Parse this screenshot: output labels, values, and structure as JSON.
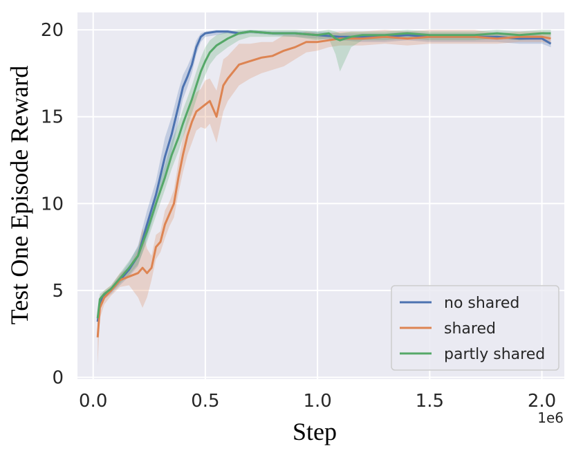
{
  "chart_data": {
    "type": "line",
    "title": "",
    "xlabel": "Step",
    "ylabel": "Test One Episode Reward",
    "x_offset_label": "1e6",
    "xlim": [
      -0.07,
      2.1
    ],
    "ylim": [
      -0.1,
      21.0
    ],
    "xticks": [
      0.0,
      0.5,
      1.0,
      1.5,
      2.0
    ],
    "xtick_labels": [
      "0.0",
      "0.5",
      "1.0",
      "1.5",
      "2.0"
    ],
    "yticks": [
      0,
      5,
      10,
      15,
      20
    ],
    "ytick_labels": [
      "0",
      "5",
      "10",
      "15",
      "20"
    ],
    "grid": true,
    "legend_position": "lower-right",
    "background": "#eaeaf2",
    "series": [
      {
        "name": "no shared",
        "color": "#4c72b0",
        "x": [
          0.02,
          0.03,
          0.05,
          0.08,
          0.12,
          0.16,
          0.2,
          0.24,
          0.28,
          0.32,
          0.35,
          0.38,
          0.4,
          0.42,
          0.44,
          0.46,
          0.48,
          0.5,
          0.55,
          0.6,
          0.65,
          0.7,
          0.8,
          0.9,
          1.0,
          1.1,
          1.2,
          1.3,
          1.4,
          1.5,
          1.6,
          1.7,
          1.8,
          1.9,
          2.0,
          2.04
        ],
        "values": [
          3.2,
          4.3,
          4.7,
          5.0,
          5.6,
          6.2,
          7.0,
          8.8,
          10.5,
          12.7,
          14.0,
          15.6,
          16.7,
          17.3,
          18.0,
          19.0,
          19.6,
          19.8,
          19.9,
          19.9,
          19.8,
          19.9,
          19.8,
          19.8,
          19.7,
          19.6,
          19.6,
          19.6,
          19.7,
          19.6,
          19.6,
          19.6,
          19.6,
          19.5,
          19.5,
          19.2
        ],
        "lower": [
          2.8,
          4.0,
          4.5,
          4.8,
          5.3,
          5.8,
          6.4,
          8.0,
          9.7,
          11.6,
          13.0,
          14.7,
          16.0,
          16.7,
          17.5,
          18.6,
          19.3,
          19.6,
          19.7,
          19.8,
          19.7,
          19.8,
          19.7,
          19.6,
          19.5,
          19.4,
          19.3,
          19.3,
          19.4,
          19.3,
          19.3,
          19.3,
          19.3,
          19.2,
          19.2,
          19.0
        ],
        "upper": [
          3.6,
          4.6,
          4.9,
          5.2,
          5.9,
          6.6,
          7.6,
          9.6,
          11.3,
          13.8,
          15.0,
          16.5,
          17.4,
          17.9,
          18.5,
          19.4,
          19.8,
          19.9,
          20.0,
          20.0,
          19.9,
          20.0,
          19.9,
          19.9,
          19.9,
          19.8,
          19.8,
          19.8,
          19.9,
          19.8,
          19.8,
          19.8,
          19.8,
          19.7,
          19.7,
          19.4
        ]
      },
      {
        "name": "shared",
        "color": "#dd8452",
        "x": [
          0.02,
          0.03,
          0.05,
          0.08,
          0.12,
          0.16,
          0.2,
          0.22,
          0.24,
          0.26,
          0.28,
          0.3,
          0.32,
          0.34,
          0.36,
          0.38,
          0.4,
          0.42,
          0.44,
          0.46,
          0.48,
          0.5,
          0.52,
          0.55,
          0.58,
          0.6,
          0.65,
          0.7,
          0.75,
          0.8,
          0.85,
          0.9,
          0.95,
          1.0,
          1.05,
          1.1,
          1.2,
          1.3,
          1.4,
          1.5,
          1.6,
          1.7,
          1.8,
          1.9,
          2.0,
          2.04
        ],
        "values": [
          2.3,
          4.0,
          4.6,
          5.0,
          5.6,
          5.8,
          6.0,
          6.3,
          6.0,
          6.3,
          7.5,
          7.8,
          8.8,
          9.4,
          10.0,
          11.5,
          12.8,
          13.9,
          14.7,
          15.3,
          15.5,
          15.7,
          15.9,
          15.0,
          16.8,
          17.2,
          18.0,
          18.2,
          18.4,
          18.5,
          18.8,
          19.0,
          19.3,
          19.3,
          19.4,
          19.5,
          19.5,
          19.6,
          19.5,
          19.6,
          19.6,
          19.6,
          19.5,
          19.6,
          19.6,
          19.5
        ],
        "lower": [
          0.7,
          3.4,
          4.2,
          4.7,
          5.2,
          5.3,
          4.6,
          4.0,
          4.6,
          5.6,
          6.8,
          7.2,
          8.0,
          8.7,
          9.2,
          10.6,
          11.8,
          12.8,
          13.5,
          14.2,
          14.4,
          14.3,
          14.6,
          13.5,
          15.3,
          15.9,
          16.8,
          17.2,
          17.5,
          17.7,
          17.9,
          18.3,
          18.7,
          18.8,
          19.0,
          19.1,
          19.1,
          19.2,
          19.1,
          19.2,
          19.2,
          19.2,
          19.2,
          19.3,
          19.3,
          19.2
        ],
        "upper": [
          3.9,
          4.6,
          5.0,
          5.3,
          6.0,
          6.3,
          7.4,
          8.6,
          7.4,
          7.0,
          8.2,
          8.4,
          9.6,
          10.1,
          10.8,
          12.4,
          13.8,
          15.0,
          15.9,
          16.4,
          16.6,
          17.1,
          17.2,
          16.5,
          18.3,
          18.5,
          19.2,
          19.2,
          19.3,
          19.3,
          19.7,
          19.7,
          19.9,
          19.8,
          19.8,
          19.9,
          19.9,
          20.0,
          19.9,
          20.0,
          20.0,
          20.0,
          19.8,
          19.9,
          19.9,
          19.8
        ]
      },
      {
        "name": "partly shared",
        "color": "#55a868",
        "x": [
          0.02,
          0.03,
          0.05,
          0.08,
          0.12,
          0.16,
          0.2,
          0.24,
          0.28,
          0.32,
          0.35,
          0.38,
          0.4,
          0.42,
          0.44,
          0.46,
          0.48,
          0.5,
          0.52,
          0.55,
          0.6,
          0.65,
          0.7,
          0.8,
          0.9,
          1.0,
          1.05,
          1.08,
          1.1,
          1.15,
          1.2,
          1.3,
          1.4,
          1.5,
          1.6,
          1.7,
          1.8,
          1.9,
          2.0,
          2.04
        ],
        "values": [
          3.4,
          4.5,
          4.8,
          5.1,
          5.7,
          6.3,
          7.0,
          8.4,
          10.0,
          11.5,
          12.8,
          13.8,
          14.6,
          15.3,
          16.0,
          16.8,
          17.6,
          18.2,
          18.7,
          19.1,
          19.5,
          19.8,
          19.9,
          19.8,
          19.8,
          19.7,
          19.8,
          19.5,
          19.4,
          19.6,
          19.7,
          19.7,
          19.8,
          19.7,
          19.7,
          19.7,
          19.8,
          19.7,
          19.8,
          19.8
        ],
        "lower": [
          3.0,
          4.2,
          4.6,
          4.9,
          5.4,
          5.9,
          6.5,
          7.8,
          9.3,
          10.8,
          12.0,
          13.0,
          13.8,
          14.5,
          15.2,
          16.0,
          16.8,
          17.4,
          18.0,
          18.5,
          19.0,
          19.4,
          19.6,
          19.6,
          19.6,
          19.4,
          19.5,
          18.6,
          17.6,
          19.0,
          19.4,
          19.4,
          19.5,
          19.4,
          19.4,
          19.4,
          19.5,
          19.4,
          19.5,
          19.6
        ],
        "upper": [
          3.8,
          4.8,
          5.0,
          5.3,
          6.0,
          6.7,
          7.5,
          9.0,
          10.7,
          12.2,
          13.6,
          14.6,
          15.4,
          16.1,
          16.8,
          17.6,
          18.4,
          19.0,
          19.4,
          19.7,
          19.9,
          20.0,
          20.0,
          20.0,
          20.0,
          19.9,
          20.0,
          19.9,
          19.8,
          19.9,
          19.9,
          19.9,
          20.0,
          19.9,
          19.9,
          19.9,
          20.0,
          19.9,
          20.0,
          20.0
        ]
      }
    ]
  }
}
